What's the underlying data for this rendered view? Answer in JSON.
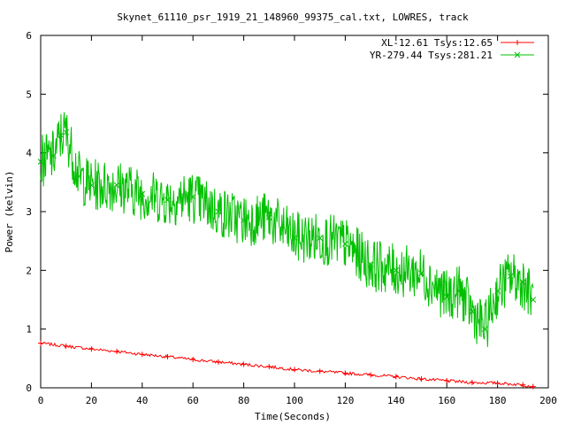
{
  "chart_data": {
    "type": "line",
    "title": "Skynet_61110_psr_1919_21_148960_99375_cal.txt, LOWRES, track",
    "xlabel": "Time(Seconds)",
    "ylabel": "Power (kelvin)",
    "xlim": [
      0,
      200
    ],
    "ylim": [
      0,
      6
    ],
    "xticks": [
      "0",
      "20",
      "40",
      "60",
      "80",
      "100",
      "120",
      "140",
      "160",
      "180",
      "200"
    ],
    "yticks": [
      "0",
      "1",
      "2",
      "3",
      "4",
      "5",
      "6"
    ],
    "grid": false,
    "legend_position": "top-right",
    "series": [
      {
        "name": "XL-12.61 Tsys:12.65",
        "color": "#ff0000",
        "marker": "plus",
        "x": [
          0,
          10,
          20,
          30,
          40,
          50,
          60,
          70,
          80,
          90,
          100,
          110,
          120,
          130,
          140,
          150,
          160,
          170,
          180,
          190,
          194
        ],
        "y": [
          0.76,
          0.71,
          0.66,
          0.62,
          0.57,
          0.53,
          0.48,
          0.44,
          0.4,
          0.36,
          0.31,
          0.28,
          0.25,
          0.22,
          0.19,
          0.15,
          0.12,
          0.09,
          0.08,
          0.05,
          0.02
        ]
      },
      {
        "name": "YR-279.44 Tsys:281.21",
        "color": "#00c000",
        "marker": "cross",
        "x": [
          0,
          5,
          8,
          10,
          15,
          20,
          30,
          40,
          50,
          60,
          70,
          80,
          90,
          100,
          110,
          120,
          130,
          140,
          150,
          160,
          165,
          170,
          175,
          180,
          185,
          190,
          194
        ],
        "y": [
          3.85,
          3.95,
          4.3,
          4.35,
          3.6,
          3.45,
          3.45,
          3.3,
          3.2,
          3.25,
          3.0,
          2.85,
          2.9,
          2.55,
          2.55,
          2.45,
          2.1,
          2.0,
          1.95,
          1.55,
          1.65,
          1.3,
          1.0,
          1.65,
          1.9,
          1.8,
          1.5
        ]
      }
    ]
  }
}
